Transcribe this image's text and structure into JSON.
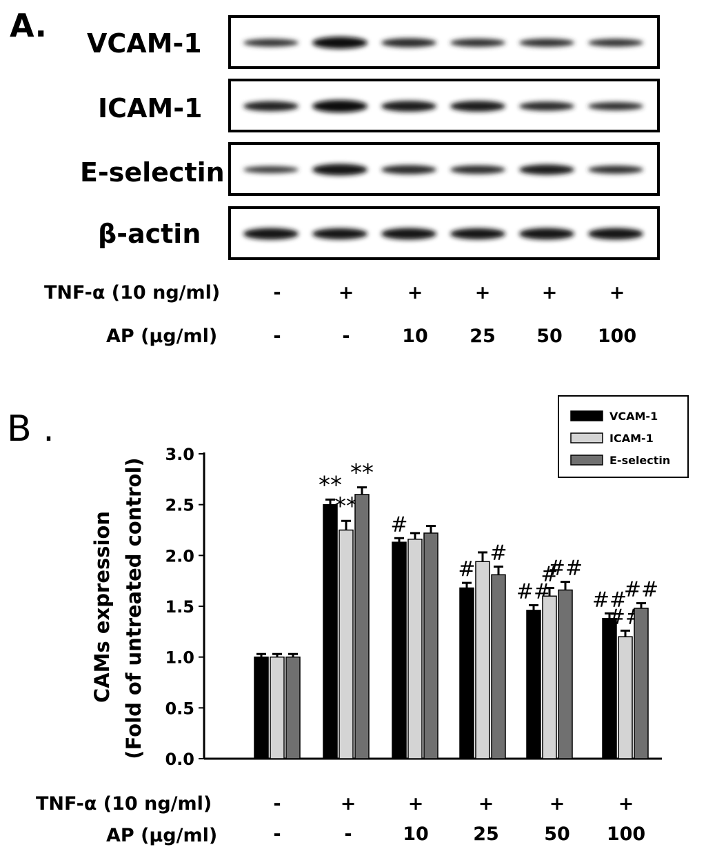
{
  "panel_a": {
    "label": "A.",
    "rows": [
      {
        "label": "VCAM-1",
        "intensity": [
          0.45,
          0.95,
          0.6,
          0.5,
          0.5,
          0.45
        ]
      },
      {
        "label": "ICAM-1",
        "intensity": [
          0.7,
          1.0,
          0.8,
          0.8,
          0.6,
          0.5
        ]
      },
      {
        "label": "E-selectin",
        "intensity": [
          0.35,
          0.9,
          0.6,
          0.55,
          0.75,
          0.5
        ]
      },
      {
        "label": "β-actin",
        "intensity": [
          0.9,
          0.85,
          0.9,
          0.85,
          0.9,
          0.9
        ]
      }
    ],
    "tnf_label": "TNF-α (10 ng/ml)",
    "tnf_values": [
      "-",
      "+",
      "+",
      "+",
      "+",
      "+"
    ],
    "ap_label": "AP (μg/ml)",
    "ap_values": [
      "-",
      "-",
      "10",
      "25",
      "50",
      "100"
    ]
  },
  "panel_b": {
    "label": "B .",
    "tnf_label": "TNF-α (10 ng/ml)",
    "tnf_values": [
      "-",
      "+",
      "+",
      "+",
      "+",
      "+"
    ],
    "ap_label": "AP (μg/ml)",
    "ap_values": [
      "-",
      "-",
      "10",
      "25",
      "50",
      "100"
    ]
  },
  "chart_data": {
    "type": "bar",
    "title": "",
    "ylabel_line1": "CAMs expression",
    "ylabel_line2": "(Fold of untreated control)",
    "ylim": [
      0,
      3.0
    ],
    "yticks": [
      "0.0",
      "0.5",
      "1.0",
      "1.5",
      "2.0",
      "2.5",
      "3.0"
    ],
    "legend_position": "top-right",
    "categories": [
      "-/-",
      "+/-",
      "+/10",
      "+/25",
      "+/50",
      "+/100"
    ],
    "series": [
      {
        "name": "VCAM-1",
        "color": "#000000",
        "values": [
          1.0,
          2.5,
          2.13,
          1.68,
          1.46,
          1.38
        ],
        "errors": [
          0.03,
          0.05,
          0.04,
          0.05,
          0.05,
          0.05
        ],
        "annotations": [
          "",
          "**",
          "#",
          "#",
          "##",
          "##"
        ]
      },
      {
        "name": "ICAM-1",
        "color": "#d4d4d4",
        "values": [
          1.0,
          2.25,
          2.16,
          1.94,
          1.6,
          1.2
        ],
        "errors": [
          0.03,
          0.09,
          0.06,
          0.09,
          0.08,
          0.06
        ],
        "annotations": [
          "",
          "**",
          "",
          "",
          "#",
          "##"
        ]
      },
      {
        "name": "E-selectin",
        "color": "#707070",
        "values": [
          1.0,
          2.6,
          2.22,
          1.81,
          1.66,
          1.48
        ],
        "errors": [
          0.03,
          0.07,
          0.07,
          0.08,
          0.08,
          0.05
        ],
        "annotations": [
          "",
          "**",
          "",
          "#",
          "##",
          "##"
        ]
      }
    ]
  }
}
